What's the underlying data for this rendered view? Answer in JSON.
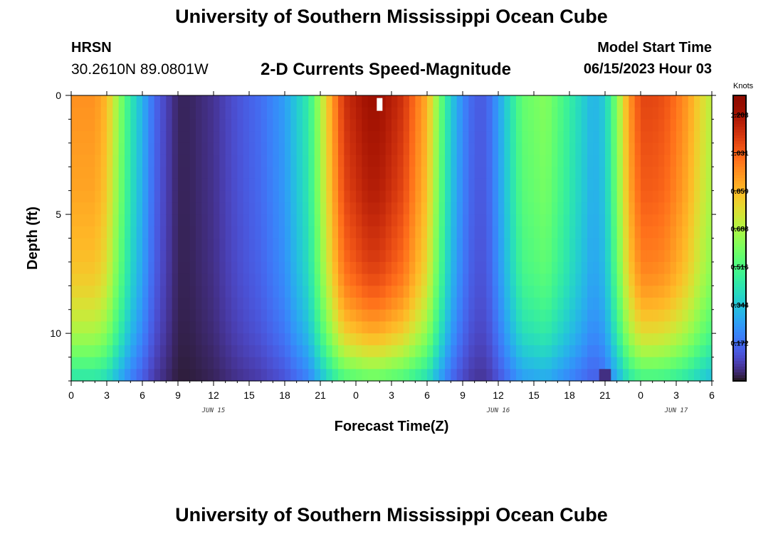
{
  "header": {
    "title": "University of Southern Mississippi Ocean Cube",
    "station_code": "HRSN",
    "station_coords": "30.2610N  89.0801W",
    "chart_title": "2-D Currents Speed-Magnitude",
    "model_label": "Model Start Time",
    "model_time": "06/15/2023 Hour 03"
  },
  "footer": {
    "title": "University of Southern Mississippi Ocean Cube"
  },
  "chart_data": {
    "type": "heatmap",
    "title": "2-D Currents Speed-Magnitude",
    "xlabel": "Forecast Time(Z)",
    "ylabel": "Depth (ft)",
    "x_unit": "hours from 00Z JUN 15",
    "xlim": [
      0,
      54
    ],
    "ylim": [
      0,
      12
    ],
    "y_inverted": true,
    "x_ticks": [
      0,
      3,
      6,
      9,
      12,
      15,
      18,
      21,
      24,
      27,
      30,
      33,
      36,
      39,
      42,
      45,
      48,
      51,
      54
    ],
    "x_tick_labels": [
      "0",
      "3",
      "6",
      "9",
      "12",
      "15",
      "18",
      "21",
      "0",
      "3",
      "6",
      "9",
      "12",
      "15",
      "18",
      "21",
      "0",
      "3",
      "6"
    ],
    "y_ticks": [
      0,
      5,
      10
    ],
    "y_tick_labels": [
      "0",
      "5",
      "10"
    ],
    "date_labels": [
      {
        "hour": 12,
        "label": "JUN 15"
      },
      {
        "hour": 36,
        "label": "JUN 16"
      },
      {
        "hour": 51,
        "label": "JUN 17"
      }
    ],
    "colorbar": {
      "title": "Knots",
      "min": 0.0,
      "max": 1.29,
      "ticks": [
        1.203,
        1.031,
        0.859,
        0.688,
        0.516,
        0.344,
        0.172
      ],
      "tick_labels": [
        "1.203",
        "1.031",
        "0.859",
        "0.688",
        "0.516",
        "0.344",
        "0.172"
      ],
      "colormap": "turbo"
    },
    "depth_levels_ft": [
      0,
      1,
      2,
      3,
      4,
      5,
      6,
      7,
      8,
      9,
      10,
      11,
      11.5,
      12
    ],
    "speed_profile": {
      "time_hours": [
        0,
        2,
        3,
        4,
        5,
        6,
        7,
        8,
        9,
        10,
        12,
        14,
        16,
        18,
        20,
        21,
        22,
        23,
        25,
        26,
        28,
        30,
        31,
        32,
        33,
        34,
        35,
        36,
        38,
        40,
        42,
        44,
        45,
        46,
        47,
        48,
        49,
        50,
        51,
        52,
        53,
        54
      ],
      "surface_knots": [
        0.94,
        0.94,
        0.86,
        0.64,
        0.44,
        0.3,
        0.16,
        0.09,
        0.03,
        0.03,
        0.06,
        0.12,
        0.17,
        0.26,
        0.45,
        0.68,
        0.92,
        1.12,
        1.22,
        1.22,
        1.12,
        0.88,
        0.6,
        0.36,
        0.22,
        0.14,
        0.14,
        0.26,
        0.56,
        0.62,
        0.46,
        0.3,
        0.36,
        0.62,
        0.92,
        1.08,
        1.08,
        1.06,
        1.0,
        0.92,
        0.8,
        0.7
      ]
    },
    "depth_factor": [
      1.0,
      0.99,
      0.98,
      0.97,
      0.96,
      0.94,
      0.92,
      0.9,
      0.86,
      0.8,
      0.72,
      0.6,
      0.52,
      0.45
    ],
    "notable_cells": [
      {
        "hour": 26,
        "depth_ft": 0.2,
        "note": "white (masked) cell"
      },
      {
        "hour": 45,
        "depth_ft": 11.6,
        "value_knots": 0.05
      }
    ]
  }
}
